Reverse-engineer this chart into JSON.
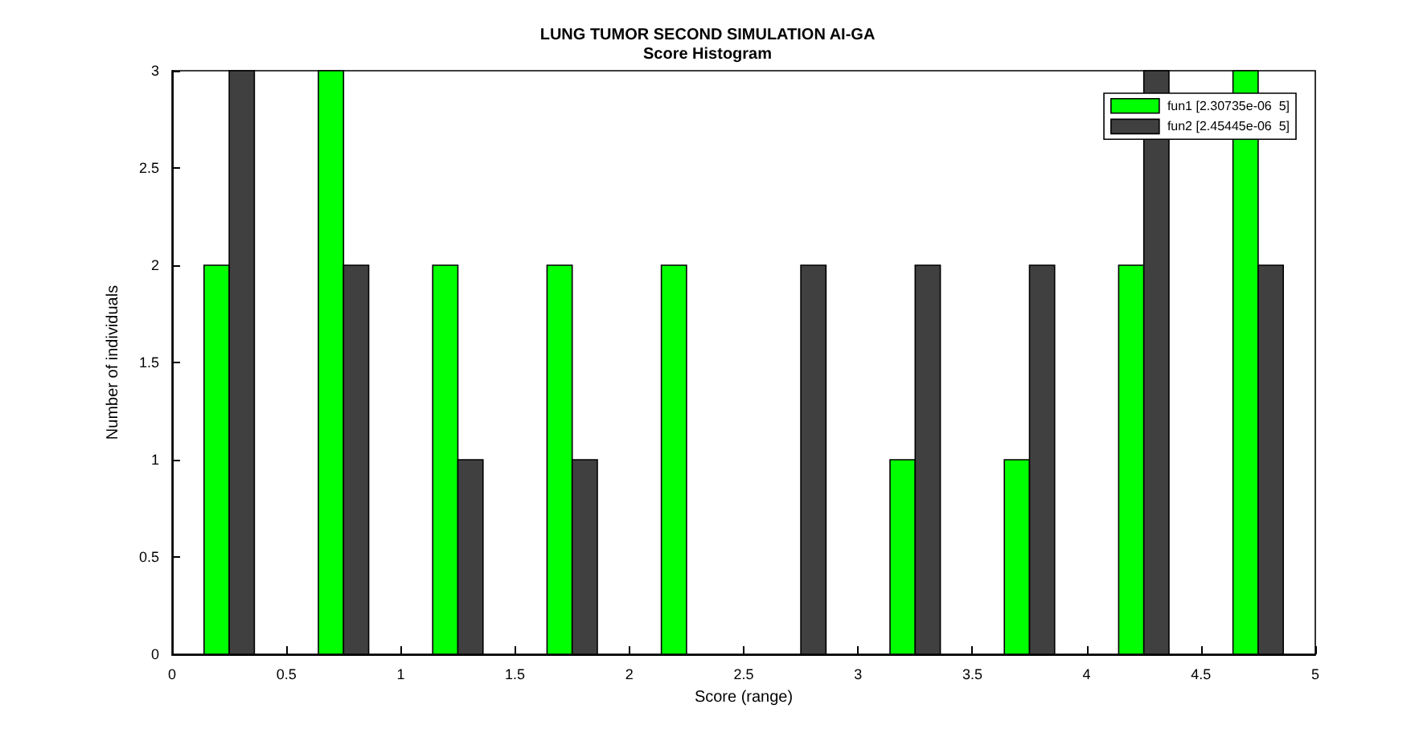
{
  "chart_data": {
    "type": "histogram",
    "title": "LUNG TUMOR SECOND SIMULATION AI-GA",
    "subtitle": "Score Histogram",
    "xlabel": "Score (range)",
    "ylabel": "Number of individuals",
    "bins": [
      0,
      0.5,
      1,
      1.5,
      2,
      2.5,
      3,
      3.5,
      4,
      4.5,
      5
    ],
    "series": [
      {
        "name": "fun1 [2.30735e-06  5]",
        "color": "#00ff00",
        "values": [
          2,
          3,
          2,
          2,
          2,
          0,
          1,
          1,
          2,
          3
        ]
      },
      {
        "name": "fun2 [2.45445e-06  5]",
        "color": "#404040",
        "values": [
          3,
          2,
          1,
          1,
          0,
          2,
          2,
          2,
          3,
          2
        ]
      }
    ],
    "xlim": [
      0,
      5
    ],
    "xticks": [
      0,
      0.5,
      1,
      1.5,
      2,
      2.5,
      3,
      3.5,
      4,
      4.5,
      5
    ],
    "ylim": [
      0,
      3
    ],
    "yticks": [
      0,
      0.5,
      1,
      1.5,
      2,
      2.5,
      3
    ],
    "grid": false,
    "legend": "top right"
  }
}
